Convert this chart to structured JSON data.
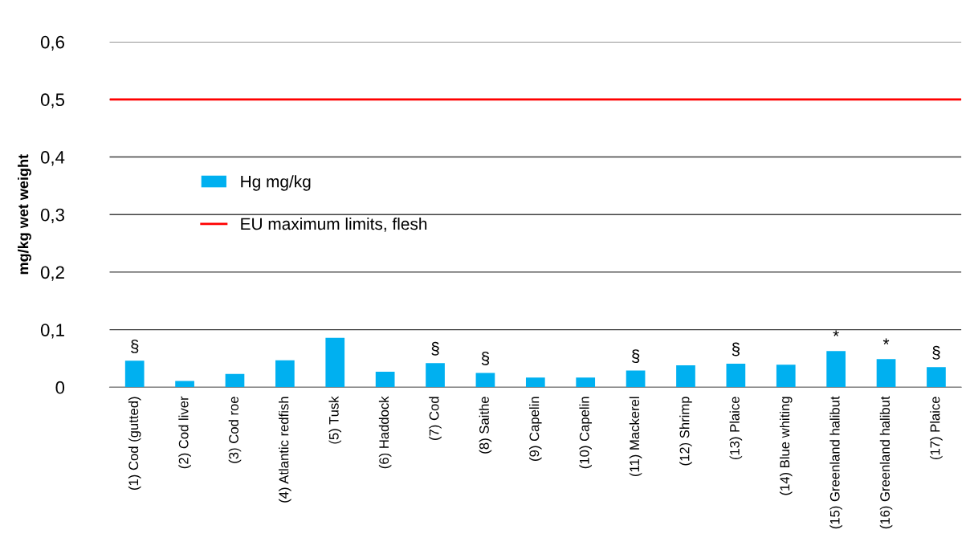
{
  "chart_data": {
    "type": "bar",
    "ylabel": "mg/kg wet weight",
    "categories": [
      "(1) Cod (gutted)",
      "(2) Cod liver",
      "(3) Cod roe",
      "(4) Atlantic redfish",
      "(5) Tusk",
      "(6) Haddock",
      "(7) Cod",
      "(8) Saithe",
      "(9) Capelin",
      "(10) Capelin",
      "(11) Mackerel",
      "(12) Shrimp",
      "(13) Plaice",
      "(14) Blue whiting",
      "(15) Greenland halibut",
      "(16) Greenland halibut",
      "(17) Plaice"
    ],
    "series": [
      {
        "name": "Hg mg/kg",
        "color": "#00b0f0",
        "values": [
          0.046,
          0.011,
          0.023,
          0.047,
          0.086,
          0.027,
          0.042,
          0.025,
          0.017,
          0.017,
          0.029,
          0.038,
          0.041,
          0.039,
          0.063,
          0.049,
          0.035
        ]
      }
    ],
    "ref_lines": [
      {
        "axis": "y",
        "value": 0.5,
        "label": "EU maximum limits, flesh",
        "color": "#ff0000",
        "line_style": "solid"
      }
    ],
    "annotations": [
      {
        "text": "§",
        "x": "(1) Cod (gutted)",
        "y": 0.046
      },
      {
        "text": "§",
        "x": "(7) Cod",
        "y": 0.042
      },
      {
        "text": "§",
        "x": "(8) Saithe",
        "y": 0.025
      },
      {
        "text": "§",
        "x": "(11) Mackerel",
        "y": 0.029
      },
      {
        "text": "§",
        "x": "(13) Plaice",
        "y": 0.041
      },
      {
        "text": "*",
        "x": "(15) Greenland halibut",
        "y": 0.063
      },
      {
        "text": "*",
        "x": "(16) Greenland halibut",
        "y": 0.049
      },
      {
        "text": "§",
        "x": "(17) Plaice",
        "y": 0.035
      }
    ],
    "ylim": [
      0,
      0.6
    ],
    "yticks": [
      {
        "value": 0,
        "label": "0"
      },
      {
        "value": 0.1,
        "label": "0,1"
      },
      {
        "value": 0.2,
        "label": "0,2"
      },
      {
        "value": 0.3,
        "label": "0,3"
      },
      {
        "value": 0.4,
        "label": "0,4"
      },
      {
        "value": 0.5,
        "label": "0,5"
      },
      {
        "value": 0.6,
        "label": "0,6"
      }
    ],
    "grid": "y",
    "legend": "center left"
  }
}
